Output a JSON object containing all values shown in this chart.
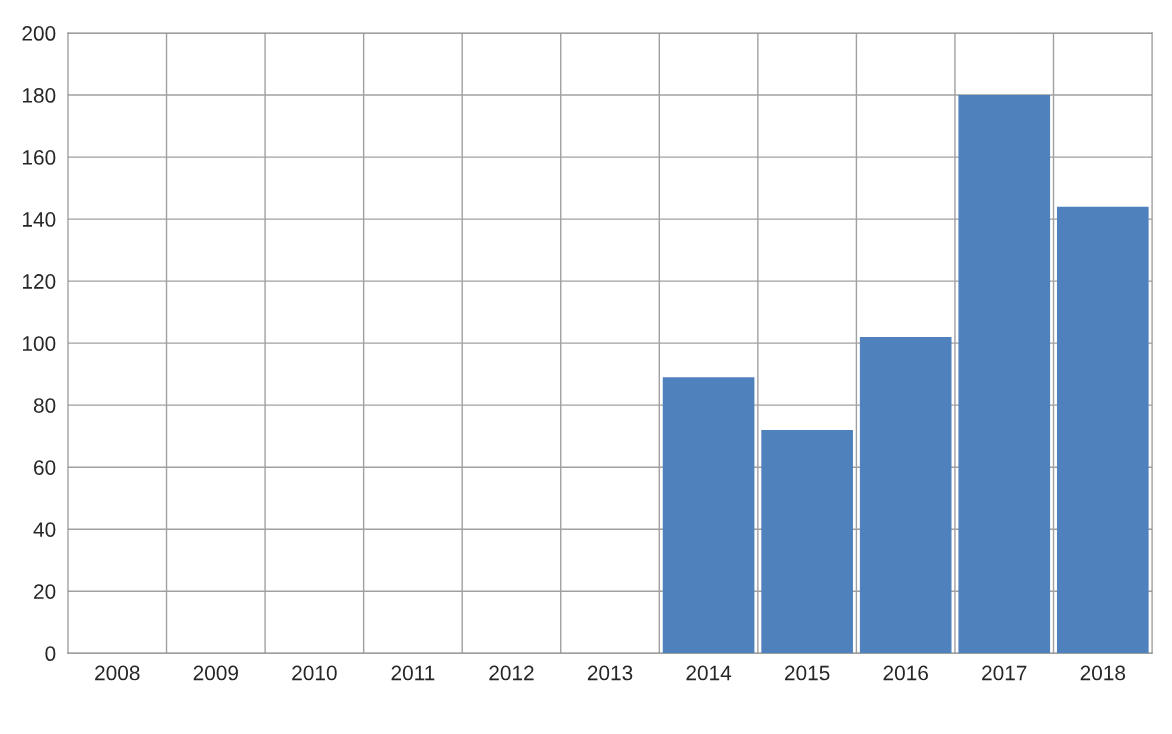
{
  "chart_data": {
    "type": "bar",
    "categories": [
      "2008",
      "2009",
      "2010",
      "2011",
      "2012",
      "2013",
      "2014",
      "2015",
      "2016",
      "2017",
      "2018"
    ],
    "values": [
      null,
      null,
      null,
      null,
      null,
      null,
      89,
      72,
      102,
      180,
      144
    ],
    "color": "#4f81bd",
    "ylim": [
      0,
      200
    ],
    "yticks": [
      0,
      20,
      40,
      60,
      80,
      100,
      120,
      140,
      160,
      180,
      200
    ],
    "grid": true
  }
}
